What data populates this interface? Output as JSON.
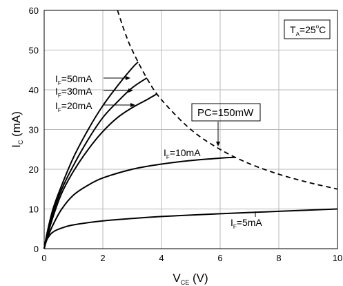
{
  "chart_data": {
    "type": "line",
    "xlim": [
      0,
      10
    ],
    "ylim": [
      0,
      60
    ],
    "x_ticks": [
      "0",
      "2",
      "4",
      "6",
      "8",
      "10"
    ],
    "y_ticks": [
      "0",
      "10",
      "20",
      "30",
      "40",
      "50",
      "60"
    ],
    "grid": true,
    "xlabel": {
      "main": "V",
      "sub": "CE",
      "unit": " (V)"
    },
    "ylabel": {
      "main": "I",
      "sub": "C",
      "unit": " (mA)"
    },
    "condition": {
      "main": "T",
      "sub": "A",
      "rest": "=25",
      "sup": "o",
      "tail": "C"
    },
    "series": [
      {
        "name": "IF=50mA",
        "label": {
          "main": "I",
          "sub": "F",
          "rest": "=50mA"
        },
        "x": [
          0,
          0.1,
          0.3,
          0.6,
          1.0,
          1.5,
          2.0,
          2.5,
          3.0,
          3.2
        ],
        "y": [
          0,
          4,
          10,
          16,
          23,
          30,
          36,
          41,
          45.5,
          47
        ]
      },
      {
        "name": "IF=30mA",
        "label": {
          "main": "I",
          "sub": "F",
          "rest": "=30mA"
        },
        "x": [
          0,
          0.1,
          0.3,
          0.6,
          1.0,
          1.5,
          2.0,
          2.5,
          3.0,
          3.5
        ],
        "y": [
          0,
          3.5,
          9,
          15,
          21,
          27.5,
          33,
          37,
          40.5,
          43
        ]
      },
      {
        "name": "IF=20mA",
        "label": {
          "main": "I",
          "sub": "F",
          "rest": "=20mA"
        },
        "x": [
          0,
          0.1,
          0.3,
          0.6,
          1.0,
          1.5,
          2.0,
          2.5,
          3.0,
          3.5,
          3.85
        ],
        "y": [
          0,
          3,
          8,
          14,
          19.5,
          25,
          29.5,
          33,
          35.5,
          37.5,
          39
        ]
      },
      {
        "name": "IF=10mA",
        "label": {
          "main": "I",
          "sub": "F",
          "rest": "=10mA"
        },
        "x": [
          0,
          0.1,
          0.3,
          0.6,
          1.0,
          1.5,
          2.0,
          3.0,
          4.0,
          5.0,
          6.0,
          6.5
        ],
        "y": [
          0,
          2.5,
          6,
          10,
          13.5,
          16,
          17.8,
          20,
          21.3,
          22.2,
          22.8,
          23
        ]
      },
      {
        "name": "IF=5mA",
        "label": {
          "main": "I",
          "sub": "F",
          "rest": "=5mA"
        },
        "x": [
          0,
          0.05,
          0.15,
          0.3,
          0.6,
          1.0,
          2.0,
          3.0,
          4.0,
          6.0,
          8.0,
          10.0
        ],
        "y": [
          0,
          1.5,
          3,
          4.2,
          5.2,
          6.0,
          7.0,
          7.6,
          8.1,
          8.8,
          9.4,
          10
        ]
      }
    ],
    "limit_curve": {
      "label": "PC=150mW",
      "power_mW": 150,
      "x": [
        2.5,
        2.75,
        3.0,
        3.5,
        4.0,
        5.0,
        6.0,
        7.0,
        8.0,
        9.0,
        10.0
      ],
      "y": [
        60,
        54.5,
        50,
        42.9,
        37.5,
        30,
        25,
        21.4,
        18.75,
        16.7,
        15
      ]
    }
  }
}
